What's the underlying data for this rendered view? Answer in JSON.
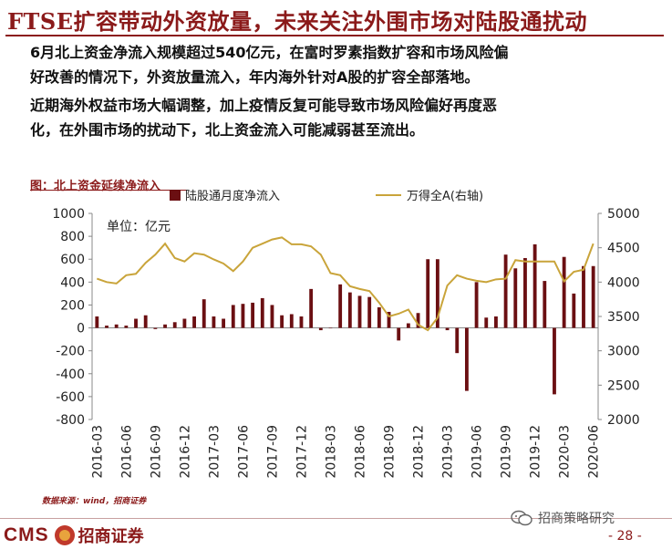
{
  "slide": {
    "title": "FTSE扩容带动外资放量，未来关注外围市场对陆股通扰动",
    "paragraph1_line1": "6月北上资金净流入规模超过540亿元，在富时罗素指数扩容和市场风险偏",
    "paragraph1_line2": "好改善的情况下，外资放量流入，年内海外针对A股的扩容全部落地。",
    "paragraph2_line1": "近期海外权益市场大幅调整，加上疫情反复可能导致市场风险偏好再度恶",
    "paragraph2_line2": "化，在外围市场的扰动下，北上资金流入可能减弱甚至流出。",
    "source": "数据来源：wind，招商证券",
    "logo_text": "CMS",
    "logo_cn": "招商证券",
    "wechat_label": "招商策略研究",
    "page_number": "- 28 -"
  },
  "colors": {
    "brand": "#8b1a1a",
    "bar": "#6b0f12",
    "line": "#c9a43a"
  },
  "chart_data": {
    "type": "bar+line",
    "title": "图：北上资金延续净流入",
    "unit_label": "单位：亿元",
    "categories": [
      "2016-03",
      "2016-04",
      "2016-05",
      "2016-06",
      "2016-07",
      "2016-08",
      "2016-09",
      "2016-10",
      "2016-11",
      "2016-12",
      "2017-01",
      "2017-02",
      "2017-03",
      "2017-04",
      "2017-05",
      "2017-06",
      "2017-07",
      "2017-08",
      "2017-09",
      "2017-10",
      "2017-11",
      "2017-12",
      "2018-01",
      "2018-02",
      "2018-03",
      "2018-04",
      "2018-05",
      "2018-06",
      "2018-07",
      "2018-08",
      "2018-09",
      "2018-10",
      "2018-11",
      "2018-12",
      "2019-01",
      "2019-02",
      "2019-03",
      "2019-04",
      "2019-05",
      "2019-06",
      "2019-07",
      "2019-08",
      "2019-09",
      "2019-10",
      "2019-11",
      "2019-12",
      "2020-01",
      "2020-02",
      "2020-03",
      "2020-04",
      "2020-05",
      "2020-06"
    ],
    "tick_labels": [
      "2016-03",
      "2016-06",
      "2016-09",
      "2016-12",
      "2017-03",
      "2017-06",
      "2017-09",
      "2017-12",
      "2018-03",
      "2018-06",
      "2018-09",
      "2018-12",
      "2019-03",
      "2019-06",
      "2019-09",
      "2019-12",
      "2020-03",
      "2020-06"
    ],
    "series": [
      {
        "name": "陆股通月度净流入",
        "axis": "left",
        "type": "bar",
        "values": [
          100,
          20,
          30,
          20,
          80,
          110,
          -10,
          30,
          50,
          80,
          100,
          250,
          100,
          80,
          200,
          210,
          220,
          260,
          200,
          110,
          120,
          100,
          340,
          -20,
          0,
          380,
          310,
          280,
          270,
          180,
          140,
          -110,
          40,
          130,
          600,
          600,
          -20,
          -220,
          -550,
          400,
          90,
          100,
          640,
          520,
          610,
          730,
          410,
          -580,
          620,
          300,
          540,
          540
        ]
      },
      {
        "name": "万得全A(右轴)",
        "axis": "right",
        "type": "line",
        "values": [
          4050,
          4000,
          3980,
          4100,
          4120,
          4280,
          4400,
          4560,
          4350,
          4300,
          4420,
          4400,
          4330,
          4270,
          4160,
          4300,
          4500,
          4560,
          4620,
          4650,
          4550,
          4550,
          4520,
          4400,
          4130,
          4100,
          3940,
          3900,
          3870,
          3700,
          3500,
          3540,
          3600,
          3380,
          3300,
          3480,
          3950,
          4100,
          4050,
          4020,
          4000,
          4040,
          4050,
          4320,
          4300,
          4300,
          4300,
          4300,
          4010,
          4150,
          4180,
          4560
        ]
      }
    ],
    "y_left": {
      "min": -800,
      "max": 1000,
      "ticks": [
        1000,
        800,
        600,
        400,
        200,
        0,
        -200,
        -400,
        -600,
        -800
      ]
    },
    "y_right": {
      "min": 2000,
      "max": 5000,
      "ticks": [
        5000,
        4500,
        4000,
        3500,
        3000,
        2500,
        2000
      ]
    },
    "legend_position": "top"
  }
}
